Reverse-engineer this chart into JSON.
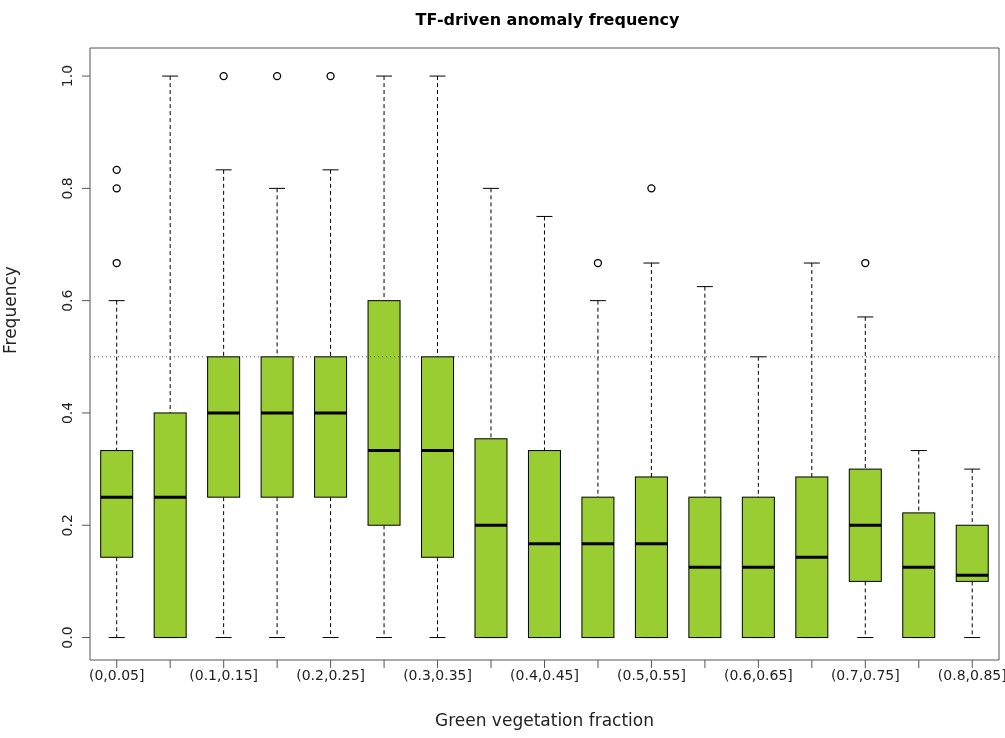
{
  "chart_data": {
    "type": "box",
    "title": "TF-driven anomaly frequency",
    "xlabel": "Green vegetation fraction",
    "ylabel": "Frequency",
    "categories": [
      "(0,0.05]",
      null,
      "(0.1,0.15]",
      null,
      "(0.2,0.25]",
      null,
      "(0.3,0.35]",
      null,
      "(0.4,0.45]",
      null,
      "(0.5,0.55]",
      null,
      "(0.6,0.65]",
      null,
      "(0.7,0.75]",
      null,
      "(0.8,0.85]"
    ],
    "color": "#9acd32",
    "boxes": [
      {
        "low": 0,
        "q1": 0.143,
        "median": 0.25,
        "q3": 0.333,
        "high": 0.6,
        "outliers": [
          0.667,
          0.8,
          0.833
        ]
      },
      {
        "low": 0,
        "q1": 0,
        "median": 0.25,
        "q3": 0.4,
        "high": 1.0
      },
      {
        "low": 0,
        "q1": 0.25,
        "median": 0.4,
        "q3": 0.5,
        "high": 0.833,
        "outliers": [
          1.0
        ]
      },
      {
        "low": 0,
        "q1": 0.25,
        "median": 0.4,
        "q3": 0.5,
        "high": 0.8,
        "outliers": [
          1.0
        ]
      },
      {
        "low": 0,
        "q1": 0.25,
        "median": 0.4,
        "q3": 0.5,
        "high": 0.833,
        "outliers": [
          1.0
        ]
      },
      {
        "low": 0,
        "q1": 0.2,
        "median": 0.333,
        "q3": 0.6,
        "high": 1.0
      },
      {
        "low": 0,
        "q1": 0.143,
        "median": 0.333,
        "q3": 0.5,
        "high": 1.0
      },
      {
        "low": 0,
        "q1": 0,
        "median": 0.2,
        "q3": 0.354,
        "high": 0.8
      },
      {
        "low": 0,
        "q1": 0,
        "median": 0.167,
        "q3": 0.333,
        "high": 0.75
      },
      {
        "low": 0,
        "q1": 0,
        "median": 0.167,
        "q3": 0.25,
        "high": 0.6,
        "outliers": [
          0.667
        ]
      },
      {
        "low": 0,
        "q1": 0,
        "median": 0.167,
        "q3": 0.286,
        "high": 0.667,
        "outliers": [
          0.8
        ]
      },
      {
        "low": 0,
        "q1": 0,
        "median": 0.125,
        "q3": 0.25,
        "high": 0.625
      },
      {
        "low": 0,
        "q1": 0,
        "median": 0.125,
        "q3": 0.25,
        "high": 0.5
      },
      {
        "low": 0,
        "q1": 0,
        "median": 0.143,
        "q3": 0.286,
        "high": 0.667
      },
      {
        "low": 0,
        "q1": 0.1,
        "median": 0.2,
        "q3": 0.3,
        "high": 0.571,
        "outliers": [
          0.667
        ]
      },
      {
        "low": 0,
        "q1": 0,
        "median": 0.125,
        "q3": 0.222,
        "high": 0.333
      },
      {
        "low": 0,
        "q1": 0.1,
        "median": 0.111,
        "q3": 0.2,
        "high": 0.3
      }
    ],
    "ylim": [
      -0.04,
      1.05
    ],
    "yticks": [
      {
        "value": 0,
        "label": "0.0"
      },
      0.2,
      0.4,
      0.6,
      0.8,
      {
        "value": 1,
        "label": "1.0"
      }
    ],
    "ref_lines": [
      {
        "axis": "y",
        "value": 0.5,
        "line_style": "dotted",
        "color": "#555555"
      }
    ],
    "grid": false,
    "legend": false
  }
}
